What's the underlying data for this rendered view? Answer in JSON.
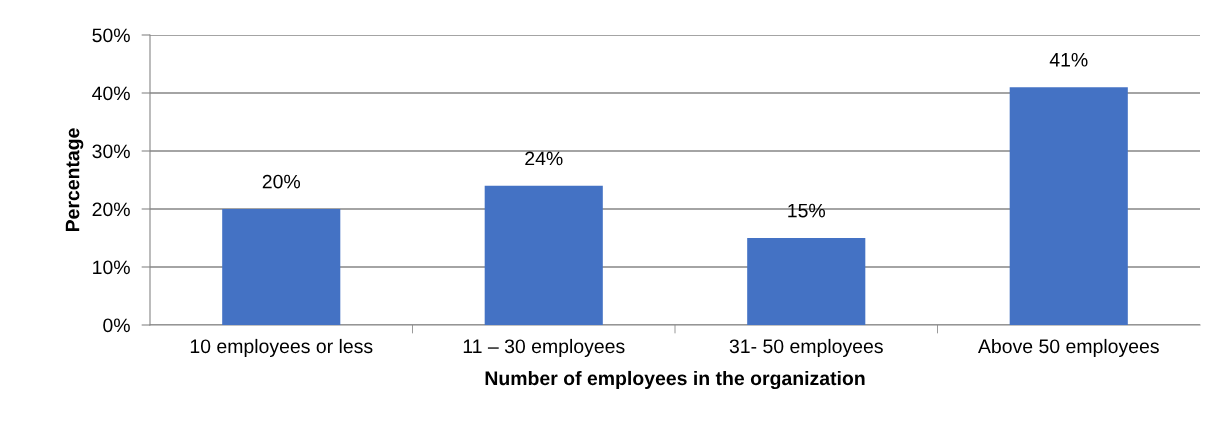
{
  "chart_data": {
    "type": "bar",
    "xlabel": "Number of employees in the organization",
    "ylabel": "Percentage",
    "categories": [
      "10 employees or less",
      "11 – 30 employees",
      "31- 50 employees",
      "Above 50 employees"
    ],
    "values": [
      20,
      24,
      15,
      41
    ],
    "value_labels": [
      "20%",
      "24%",
      "15%",
      "41%"
    ],
    "color": "#4472c4",
    "ylim": [
      0,
      50
    ],
    "yticks": [
      {
        "value": 0,
        "label": "0%"
      },
      {
        "value": 10,
        "label": "10%"
      },
      {
        "value": 20,
        "label": "20%"
      },
      {
        "value": 30,
        "label": "30%"
      },
      {
        "value": 40,
        "label": "40%"
      },
      {
        "value": 50,
        "label": "50%"
      }
    ],
    "grid": "y",
    "legend": false
  }
}
